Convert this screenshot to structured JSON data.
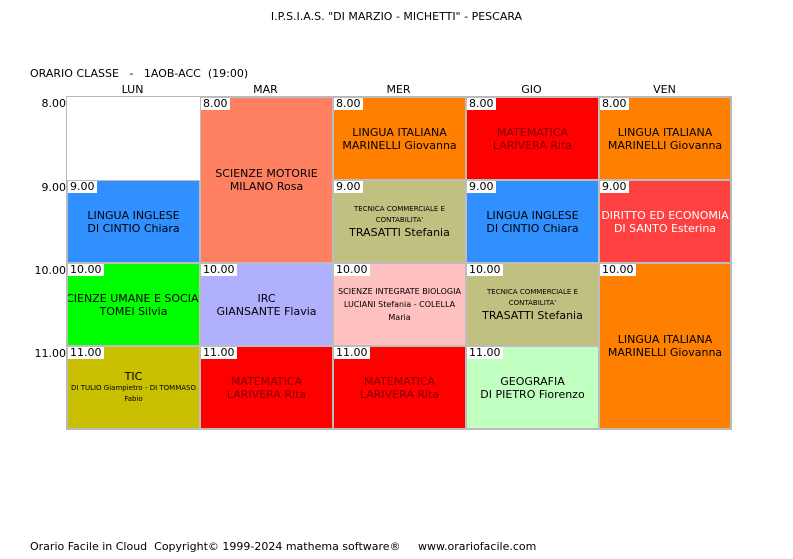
{
  "title": "I.P.S.I.A.S. \"DI MARZIO - MICHETTI\" - PESCARA",
  "class_info": "ORARIO CLASSE   -   1AOB-ACC  (19:00)",
  "days": [
    "LUN",
    "MAR",
    "MER",
    "GIO",
    "VEN"
  ],
  "times": [
    "8.00",
    "9.00",
    "10.00",
    "11.00"
  ],
  "lessons": [
    {
      "day": "LUN",
      "time": "9.00",
      "color": "#3090ff",
      "text_color": "#000000",
      "line1": "LINGUA INGLESE",
      "line2": "DI CINTIO Chiara"
    },
    {
      "day": "LUN",
      "time": "10.00",
      "color": "#00ff00",
      "text_color": "#000000",
      "line1": "SCIENZE UMANE E SOCIALI",
      "line2": "TOMEI Silvia"
    },
    {
      "day": "LUN",
      "time": "11.00",
      "color": "#c8c000",
      "text_color": "#000000",
      "line1": "TIC",
      "line2": "DI TULIO Giampietro - DI TOMMASO Fabio"
    },
    {
      "day": "MAR",
      "time": "8.00",
      "color": "#ff8060",
      "text_color": "#000000",
      "line1": "SCIENZE MOTORIE",
      "line2": "MILANO Rosa"
    },
    {
      "day": "MAR",
      "time": "10.00",
      "color": "#b0b0ff",
      "text_color": "#000000",
      "line1": "IRC",
      "line2": "GIANSANTE Flavia"
    },
    {
      "day": "MAR",
      "time": "11.00",
      "color": "#ff0000",
      "text_color": "#800000",
      "line1": "MATEMATICA",
      "line2": "LARIVERA Rita"
    },
    {
      "day": "MER",
      "time": "8.00",
      "color": "#ff8000",
      "text_color": "#000000",
      "line1": "LINGUA ITALIANA",
      "line2": "MARINELLI Giovanna"
    },
    {
      "day": "MER",
      "time": "9.00",
      "color": "#c0c080",
      "text_color": "#000000",
      "line1": "TECNICA COMMERCIALE E CONTABILITA'",
      "line2": "TRASATTI Stefania"
    },
    {
      "day": "MER",
      "time": "10.00",
      "color": "#ffc0c0",
      "text_color": "#000000",
      "line1": "SCIENZE INTEGRATE  BIOLOGIA",
      "line2": "LUCIANI Stefania - COLELLA Maria"
    },
    {
      "day": "MER",
      "time": "11.00",
      "color": "#ff0000",
      "text_color": "#800000",
      "line1": "MATEMATICA",
      "line2": "LARIVERA Rita"
    },
    {
      "day": "GIO",
      "time": "8.00",
      "color": "#ff0000",
      "text_color": "#800000",
      "line1": "MATEMATICA",
      "line2": "LARIVERA Rita"
    },
    {
      "day": "GIO",
      "time": "9.00",
      "color": "#3090ff",
      "text_color": "#000000",
      "line1": "LINGUA INGLESE",
      "line2": "DI CINTIO Chiara"
    },
    {
      "day": "GIO",
      "time": "10.00",
      "color": "#c0c080",
      "text_color": "#000000",
      "line1": "TECNICA COMMERCIALE E CONTABILITA'",
      "line2": "TRASATTI Stefania"
    },
    {
      "day": "GIO",
      "time": "11.00",
      "color": "#c0ffc0",
      "text_color": "#000000",
      "line1": "GEOGRAFIA",
      "line2": "DI PIETRO Fiorenzo"
    },
    {
      "day": "VEN",
      "time": "8.00",
      "color": "#ff8000",
      "text_color": "#000000",
      "line1": "LINGUA ITALIANA",
      "line2": "MARINELLI Giovanna"
    },
    {
      "day": "VEN",
      "time": "9.00",
      "color": "#ff4040",
      "text_color": "#ffffff",
      "line1": "DIRITTO ED ECONOMIA",
      "line2": "DI SANTO Esterina"
    },
    {
      "day": "VEN",
      "time": "10.00",
      "color": "#ff8000",
      "text_color": "#000000",
      "line1": "LINGUA ITALIANA",
      "line2": "MARINELLI Giovanna"
    }
  ],
  "footer": "Orario Facile in Cloud  Copyright© 1999-2024 mathema software®     www.orariofacile.com"
}
